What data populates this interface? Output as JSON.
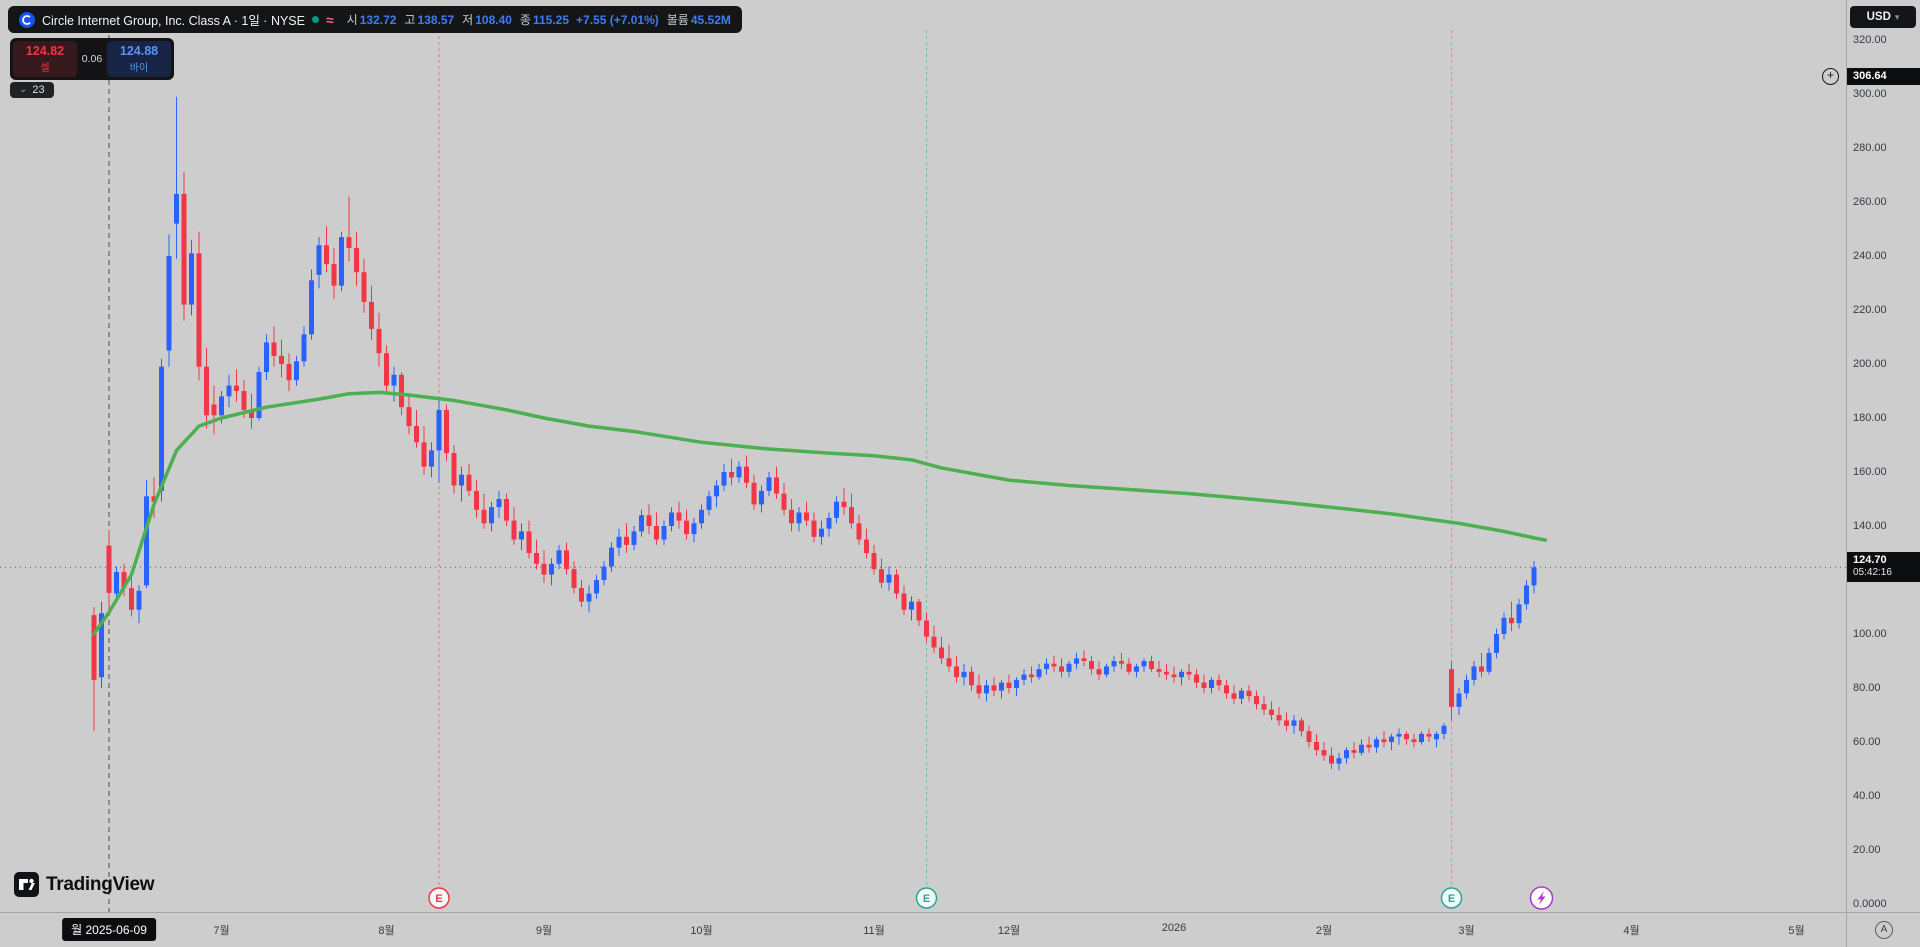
{
  "header": {
    "title": "Circle Internet Group, Inc. Class A · 1일 · NYSE",
    "open_label": "시",
    "open_value": "132.72",
    "high_label": "고",
    "high_value": "138.57",
    "low_label": "저",
    "low_value": "108.40",
    "close_label": "종",
    "close_value": "115.25",
    "change_value": "+7.55 (+7.01%)",
    "volume_label": "볼륨",
    "volume_value": "45.52M"
  },
  "trade_panel": {
    "sell_price": "124.82",
    "sell_label": "셀",
    "spread": "0.06",
    "buy_price": "124.88",
    "buy_label": "바이"
  },
  "objects_tray": {
    "count": "23"
  },
  "currency": {
    "label": "USD"
  },
  "price_axis": {
    "high_badge": "306.64",
    "last_price": "124.70",
    "countdown": "05:42:16",
    "auto_label": "A"
  },
  "time_axis": {
    "crosshair_date": "월 2025-06-09"
  },
  "watermark": {
    "brand": "TradingView"
  },
  "icons": {
    "chevron_down": "⌄",
    "caret_down": "▾",
    "wave": "≈",
    "plus": "+"
  },
  "colors": {
    "up": "#2962ff",
    "down": "#f23645",
    "ma": "#4caf50",
    "earnings_red": "#f23645",
    "earnings_teal": "#22ab94",
    "flash_purple": "#b13ccb",
    "background": "#cdcdcd",
    "market_open": "#089981",
    "value_blue": "#3c7df5"
  },
  "chart_data": {
    "type": "candlestick",
    "title": "Circle Internet Group, Inc. Class A",
    "exchange": "NYSE",
    "interval": "1일",
    "currency": "USD",
    "last_price": 124.7,
    "alert_price": 306.64,
    "up_color": "#2962ff",
    "down_color": "#f23645",
    "ylim": [
      0,
      320
    ],
    "y_ticks": [
      {
        "price": 320,
        "label": "320.00"
      },
      {
        "price": 300,
        "label": "300.00"
      },
      {
        "price": 280,
        "label": "280.00"
      },
      {
        "price": 260,
        "label": "260.00"
      },
      {
        "price": 240,
        "label": "240.00"
      },
      {
        "price": 220,
        "label": "220.00"
      },
      {
        "price": 200,
        "label": "200.00"
      },
      {
        "price": 180,
        "label": "180.00"
      },
      {
        "price": 160,
        "label": "160.00"
      },
      {
        "price": 140,
        "label": "140.00"
      },
      {
        "price": 100,
        "label": "100.00"
      },
      {
        "price": 80,
        "label": "80.00"
      },
      {
        "price": 60,
        "label": "60.00"
      },
      {
        "price": 40,
        "label": "40.00"
      },
      {
        "price": 20,
        "label": "20.00"
      },
      {
        "price": 0,
        "label": "0.0000"
      }
    ],
    "x_ticks": [
      {
        "day": 17,
        "label": "7월"
      },
      {
        "day": 39,
        "label": "8월"
      },
      {
        "day": 60,
        "label": "9월"
      },
      {
        "day": 81,
        "label": "10월"
      },
      {
        "day": 104,
        "label": "11월"
      },
      {
        "day": 122,
        "label": "12월"
      },
      {
        "day": 144,
        "label": "2026"
      },
      {
        "day": 164,
        "label": "2월"
      },
      {
        "day": 183,
        "label": "3월"
      },
      {
        "day": 205,
        "label": "4월"
      },
      {
        "day": 227,
        "label": "5월"
      }
    ],
    "events": [
      {
        "day": 2,
        "kind": "crosshair",
        "date": "월 2025-06-09"
      },
      {
        "day": 46,
        "kind": "earnings",
        "color": "#f23645",
        "letter": "E"
      },
      {
        "day": 111,
        "kind": "earnings",
        "color": "#22ab94",
        "letter": "E"
      },
      {
        "day": 181,
        "kind": "earnings",
        "color": "#22ab94",
        "letter": "E"
      },
      {
        "day": 193,
        "kind": "flash",
        "color": "#b13ccb"
      }
    ],
    "ma_line": {
      "color": "#4caf50",
      "points": [
        [
          0,
          100
        ],
        [
          2,
          108
        ],
        [
          5,
          122
        ],
        [
          8,
          148
        ],
        [
          11,
          168
        ],
        [
          14,
          177
        ],
        [
          17,
          180
        ],
        [
          23,
          184
        ],
        [
          30,
          187
        ],
        [
          34,
          189
        ],
        [
          38,
          189.5
        ],
        [
          42,
          188.5
        ],
        [
          48,
          186.5
        ],
        [
          55,
          183
        ],
        [
          60,
          180
        ],
        [
          66,
          177
        ],
        [
          72,
          175
        ],
        [
          81,
          171
        ],
        [
          90,
          168.5
        ],
        [
          98,
          167
        ],
        [
          104,
          166
        ],
        [
          109,
          164.5
        ],
        [
          113,
          161.5
        ],
        [
          117,
          159.5
        ],
        [
          122,
          157
        ],
        [
          130,
          155
        ],
        [
          138,
          153.5
        ],
        [
          146,
          152
        ],
        [
          152,
          150.5
        ],
        [
          158,
          149
        ],
        [
          163,
          147.5
        ],
        [
          168,
          146
        ],
        [
          173,
          144.5
        ],
        [
          178,
          142.5
        ],
        [
          182,
          141
        ],
        [
          185,
          139.5
        ],
        [
          188,
          138
        ],
        [
          190,
          136.8
        ],
        [
          192,
          135.6
        ],
        [
          193.5,
          134.8
        ]
      ]
    },
    "candles": [
      [
        107,
        110,
        64,
        83
      ],
      [
        84,
        112,
        80,
        107.7
      ],
      [
        132.72,
        138.57,
        108.4,
        115.25
      ],
      [
        115,
        125,
        112,
        123
      ],
      [
        123,
        126,
        114,
        117
      ],
      [
        117,
        122,
        106.5,
        109
      ],
      [
        109,
        118,
        104,
        116
      ],
      [
        118,
        157,
        117,
        151
      ],
      [
        151,
        158,
        143,
        149
      ],
      [
        153,
        202,
        149,
        199
      ],
      [
        205,
        248,
        199,
        240
      ],
      [
        252,
        298.99,
        239,
        263
      ],
      [
        263,
        271,
        216,
        222
      ],
      [
        222,
        246,
        218,
        241
      ],
      [
        241,
        249,
        194,
        199
      ],
      [
        199,
        206,
        176,
        181
      ],
      [
        185,
        192,
        174,
        181
      ],
      [
        181,
        190,
        178,
        188
      ],
      [
        188,
        196,
        184,
        192
      ],
      [
        192,
        198,
        186,
        190
      ],
      [
        190,
        194,
        180,
        183
      ],
      [
        183,
        189,
        176,
        180
      ],
      [
        180,
        199,
        179,
        197
      ],
      [
        197,
        211,
        194,
        208
      ],
      [
        208,
        214,
        199,
        203
      ],
      [
        203,
        209,
        195,
        200
      ],
      [
        200,
        204,
        190,
        194
      ],
      [
        194,
        203,
        192,
        201
      ],
      [
        201,
        214,
        199,
        211
      ],
      [
        211,
        235,
        209,
        231
      ],
      [
        233,
        247,
        228,
        244
      ],
      [
        244,
        251,
        234,
        237
      ],
      [
        237,
        243,
        224,
        229
      ],
      [
        229,
        249,
        227,
        247
      ],
      [
        247,
        262,
        238,
        243
      ],
      [
        243,
        249,
        229,
        234
      ],
      [
        234,
        239,
        219,
        223
      ],
      [
        223,
        229,
        209,
        213
      ],
      [
        213,
        219,
        199,
        204
      ],
      [
        204,
        207,
        189,
        192
      ],
      [
        192,
        199,
        186,
        196
      ],
      [
        196,
        197,
        181,
        184
      ],
      [
        184,
        189,
        174,
        177
      ],
      [
        177,
        183,
        169,
        171
      ],
      [
        171,
        177,
        159,
        162
      ],
      [
        162,
        171,
        158,
        168
      ],
      [
        168,
        187,
        156,
        183
      ],
      [
        183,
        185,
        164,
        167
      ],
      [
        167,
        170,
        152,
        155
      ],
      [
        155,
        162,
        149,
        159
      ],
      [
        159,
        163,
        151,
        153
      ],
      [
        153,
        157,
        143,
        146
      ],
      [
        146,
        152,
        139,
        141
      ],
      [
        141,
        149,
        138,
        147
      ],
      [
        147,
        153,
        143,
        150
      ],
      [
        150,
        152,
        140,
        142
      ],
      [
        142,
        147,
        133,
        135
      ],
      [
        135,
        141,
        131,
        138
      ],
      [
        138,
        142,
        128,
        130
      ],
      [
        130,
        135,
        124,
        126
      ],
      [
        126,
        131,
        119,
        122
      ],
      [
        122,
        128,
        118,
        126
      ],
      [
        126,
        133,
        124,
        131
      ],
      [
        131,
        134,
        122,
        124
      ],
      [
        124,
        127,
        115,
        117
      ],
      [
        117,
        120,
        110,
        112
      ],
      [
        112,
        118,
        108,
        115
      ],
      [
        115,
        122,
        113,
        120
      ],
      [
        120,
        127,
        118,
        125
      ],
      [
        125,
        134,
        123,
        132
      ],
      [
        132,
        139,
        129,
        136
      ],
      [
        136,
        141,
        130,
        133
      ],
      [
        133,
        140,
        131,
        138
      ],
      [
        138,
        146,
        136,
        144
      ],
      [
        144,
        148,
        137,
        140
      ],
      [
        140,
        145,
        133,
        135
      ],
      [
        135,
        142,
        133,
        140
      ],
      [
        140,
        147,
        138,
        145
      ],
      [
        145,
        149,
        139,
        142
      ],
      [
        142,
        146,
        135,
        137
      ],
      [
        137,
        143,
        134,
        141
      ],
      [
        141,
        148,
        139,
        146
      ],
      [
        146,
        153,
        144,
        151
      ],
      [
        151,
        157,
        147,
        155
      ],
      [
        155,
        163,
        153,
        160
      ],
      [
        160,
        165,
        155,
        158
      ],
      [
        158,
        164,
        156,
        162
      ],
      [
        162,
        166,
        154,
        156
      ],
      [
        156,
        159,
        146,
        148
      ],
      [
        148,
        155,
        145,
        153
      ],
      [
        153,
        160,
        151,
        158
      ],
      [
        158,
        162,
        150,
        152
      ],
      [
        152,
        156,
        144,
        146
      ],
      [
        146,
        150,
        138,
        141
      ],
      [
        141,
        147,
        138,
        145
      ],
      [
        145,
        149,
        140,
        142
      ],
      [
        142,
        145,
        134,
        136
      ],
      [
        136,
        142,
        133,
        139
      ],
      [
        139,
        145,
        136,
        143
      ],
      [
        143,
        151,
        141,
        149
      ],
      [
        149,
        154,
        144,
        147
      ],
      [
        147,
        152,
        139,
        141
      ],
      [
        141,
        144,
        133,
        135
      ],
      [
        135,
        139,
        128,
        130
      ],
      [
        130,
        133,
        122,
        124
      ],
      [
        124,
        128,
        117,
        119
      ],
      [
        119,
        125,
        116,
        122
      ],
      [
        122,
        124,
        113,
        115
      ],
      [
        115,
        118,
        107,
        109
      ],
      [
        109,
        114,
        105,
        112
      ],
      [
        112,
        113,
        103,
        105
      ],
      [
        105,
        108,
        97,
        99
      ],
      [
        99,
        103,
        93,
        95
      ],
      [
        95,
        99,
        89,
        91
      ],
      [
        91,
        96,
        86,
        88
      ],
      [
        88,
        92,
        82,
        84
      ],
      [
        84,
        89,
        81,
        86
      ],
      [
        86,
        88,
        79,
        81
      ],
      [
        81,
        85,
        76,
        78
      ],
      [
        78,
        83,
        75,
        81
      ],
      [
        81,
        84,
        77,
        79
      ],
      [
        79,
        83,
        76,
        82
      ],
      [
        82,
        85,
        78,
        80
      ],
      [
        80,
        84,
        77,
        83
      ],
      [
        83,
        87,
        81,
        85
      ],
      [
        85,
        88,
        82,
        84
      ],
      [
        84,
        89,
        83,
        87
      ],
      [
        87,
        91,
        85,
        89
      ],
      [
        89,
        92,
        86,
        88
      ],
      [
        88,
        91,
        84,
        86
      ],
      [
        86,
        90,
        84,
        89
      ],
      [
        89,
        93,
        87,
        91
      ],
      [
        91,
        94,
        88,
        90
      ],
      [
        90,
        92,
        85,
        87
      ],
      [
        87,
        90,
        83,
        85
      ],
      [
        85,
        89,
        84,
        88
      ],
      [
        88,
        92,
        86,
        90
      ],
      [
        90,
        93,
        87,
        89
      ],
      [
        89,
        91,
        85,
        86
      ],
      [
        86,
        89,
        84,
        88
      ],
      [
        88,
        91,
        86,
        90
      ],
      [
        90,
        92,
        86,
        87
      ],
      [
        87,
        90,
        84,
        86
      ],
      [
        86,
        89,
        83,
        85
      ],
      [
        85,
        88,
        82,
        84
      ],
      [
        84,
        87,
        81,
        86
      ],
      [
        86,
        89,
        83,
        85
      ],
      [
        85,
        87,
        80,
        82
      ],
      [
        82,
        85,
        78,
        80
      ],
      [
        80,
        84,
        78,
        83
      ],
      [
        83,
        85,
        79,
        81
      ],
      [
        81,
        83,
        76,
        78
      ],
      [
        78,
        81,
        74,
        76
      ],
      [
        76,
        80,
        74,
        79
      ],
      [
        79,
        81,
        75,
        77
      ],
      [
        77,
        79,
        72,
        74
      ],
      [
        74,
        77,
        70,
        72
      ],
      [
        72,
        75,
        68,
        70
      ],
      [
        70,
        73,
        66,
        68
      ],
      [
        68,
        71,
        64,
        66
      ],
      [
        66,
        70,
        63,
        68
      ],
      [
        68,
        69,
        62,
        64
      ],
      [
        64,
        66,
        58,
        60
      ],
      [
        60,
        63,
        55,
        57
      ],
      [
        57,
        60,
        53,
        55
      ],
      [
        55,
        58,
        50,
        52
      ],
      [
        52,
        56,
        49.5,
        54
      ],
      [
        54,
        58,
        52,
        57
      ],
      [
        57,
        60,
        54,
        56
      ],
      [
        56,
        61,
        55,
        59
      ],
      [
        59,
        62,
        56,
        58
      ],
      [
        58,
        62,
        56,
        61
      ],
      [
        61,
        64,
        58,
        60
      ],
      [
        60,
        63,
        57,
        62
      ],
      [
        62,
        65,
        59,
        63
      ],
      [
        63,
        64,
        59,
        61
      ],
      [
        61,
        63,
        58,
        60
      ],
      [
        60,
        64,
        59,
        63
      ],
      [
        63,
        65,
        60,
        62
      ],
      [
        61,
        64,
        58,
        63
      ],
      [
        63,
        67,
        61,
        66
      ],
      [
        87,
        90,
        68,
        73
      ],
      [
        73,
        80,
        70,
        78
      ],
      [
        78,
        85,
        76,
        83
      ],
      [
        83,
        90,
        81,
        88
      ],
      [
        88,
        93,
        84,
        86
      ],
      [
        86,
        95,
        85,
        93
      ],
      [
        93,
        102,
        91,
        100
      ],
      [
        100,
        108,
        98,
        106
      ],
      [
        106,
        112,
        101,
        104
      ],
      [
        104,
        113,
        102,
        111
      ],
      [
        111,
        120,
        109,
        118
      ],
      [
        118,
        127,
        115,
        124.7
      ]
    ]
  }
}
